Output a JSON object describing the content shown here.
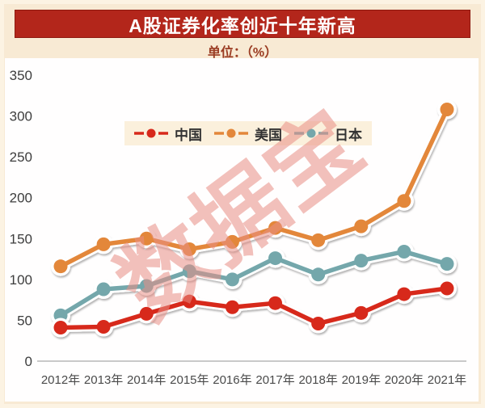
{
  "banner": {
    "title": "A股证券化率创近十年新高"
  },
  "subtitle": "单位：（%）",
  "watermark": "数据宝",
  "colors": {
    "page_bg": "#f8ead4",
    "page_edge": "#fcf3e3",
    "banner_bg": "#b3261b",
    "banner_text": "#ffffff",
    "subtitle_text": "#9a3b22",
    "panel_bg": "#fffefe",
    "axis_line": "#c9c9c9",
    "ytick_text": "#3d3d3d",
    "xtick_text": "#4a4a4a",
    "legend_bg": "#fbf0dc",
    "legend_text": "#333333",
    "watermark_pink": "#e98f86"
  },
  "chart_data": {
    "type": "line",
    "title": "A股证券化率创近十年新高",
    "unit_label": "单位：（%）",
    "categories": [
      "2012年",
      "2013年",
      "2014年",
      "2015年",
      "2016年",
      "2017年",
      "2018年",
      "2019年",
      "2020年",
      "2021年"
    ],
    "series": [
      {
        "name": "中国",
        "color": "#d7291b",
        "values": [
          41,
          42,
          58,
          73,
          66,
          71,
          46,
          59,
          82,
          89
        ]
      },
      {
        "name": "美国",
        "color": "#e3873a",
        "values": [
          116,
          143,
          150,
          137,
          146,
          163,
          148,
          165,
          196,
          308
        ]
      },
      {
        "name": "日本",
        "color": "#74a7ab",
        "values": [
          56,
          88,
          92,
          110,
          100,
          126,
          106,
          123,
          134,
          119
        ]
      }
    ],
    "ylim": [
      0,
      350
    ],
    "yticks": [
      0,
      50,
      100,
      150,
      200,
      250,
      300,
      350
    ],
    "xlabel": "",
    "ylabel": "",
    "grid": false,
    "legend_position": "top-center",
    "draw_order": [
      1,
      2,
      0
    ]
  }
}
